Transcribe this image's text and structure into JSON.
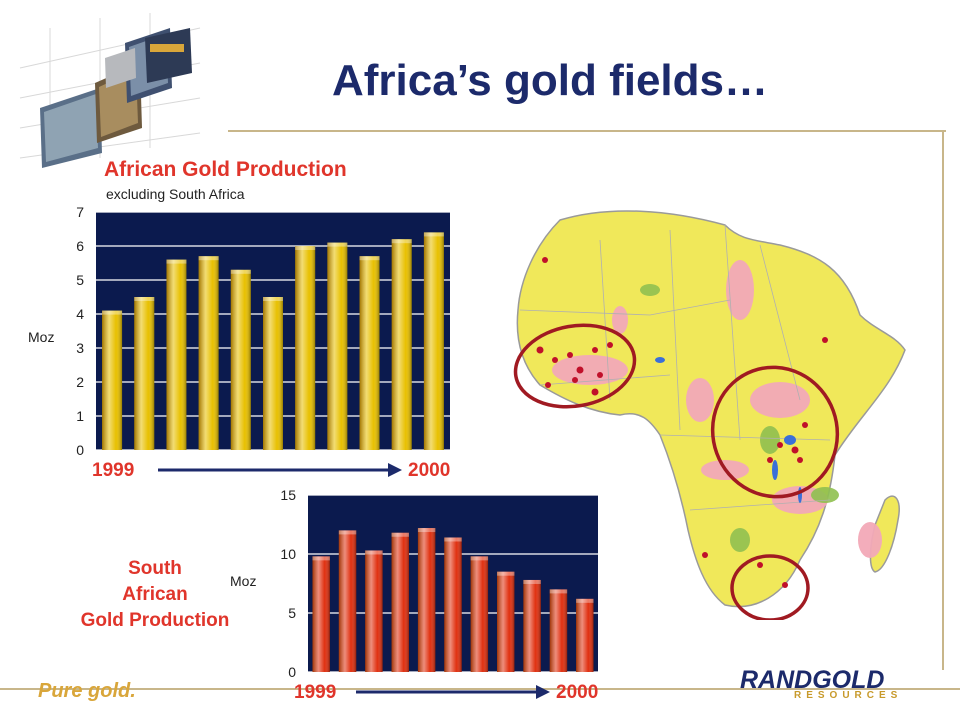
{
  "slide": {
    "title": "Africa’s gold fields…",
    "slogan": "Pure gold.",
    "logo_word": "RANDGOLD",
    "logo_sub": "RESOURCES"
  },
  "chart_data": [
    {
      "type": "bar",
      "title": "African Gold Production",
      "subtitle": "excluding South Africa",
      "ylabel": "Moz",
      "ylim": [
        0,
        7
      ],
      "yticks": [
        0,
        1,
        2,
        3,
        4,
        5,
        6,
        7
      ],
      "start_label": "1999",
      "end_label": "2000",
      "values": [
        4.1,
        4.5,
        5.6,
        5.7,
        5.3,
        4.5,
        6.0,
        6.1,
        5.7,
        6.2,
        6.4
      ],
      "colors": {
        "bar": "#e8c000",
        "plot_bg": "#0b1a4e",
        "grid": "#ffffff"
      }
    },
    {
      "type": "bar",
      "title": "South\nAfrican\nGold Production",
      "ylabel": "Moz",
      "ylim": [
        0,
        15
      ],
      "yticks": [
        0,
        5,
        10,
        15
      ],
      "start_label": "1999",
      "end_label": "2000",
      "values": [
        9.8,
        12.0,
        10.3,
        11.8,
        12.2,
        11.4,
        9.8,
        8.5,
        7.8,
        7.0,
        6.2
      ],
      "colors": {
        "bar": "#e03010",
        "plot_bg": "#0b1a4e",
        "grid": "#ffffff"
      }
    }
  ]
}
